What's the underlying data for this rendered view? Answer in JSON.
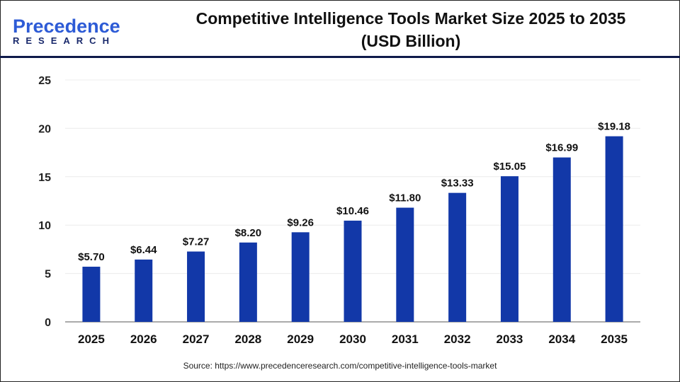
{
  "logo": {
    "line1_a": "P",
    "line1_b": "recedence",
    "line2": "RESEARCH"
  },
  "title_line1": "Competitive Intelligence Tools Market Size 2025 to 2035",
  "title_line2": "(USD Billion)",
  "source": "Source: https://www.precedenceresearch.com/competitive-intelligence-tools-market",
  "colors": {
    "bar": "#1238a8",
    "header_line": "#0e1a4a"
  },
  "chart_data": {
    "type": "bar",
    "title": "Competitive Intelligence Tools Market Size 2025 to 2035 (USD Billion)",
    "xlabel": "",
    "ylabel": "",
    "categories": [
      "2025",
      "2026",
      "2027",
      "2028",
      "2029",
      "2030",
      "2031",
      "2032",
      "2033",
      "2034",
      "2035"
    ],
    "values": [
      5.7,
      6.44,
      7.27,
      8.2,
      9.26,
      10.46,
      11.8,
      13.33,
      15.05,
      16.99,
      19.18
    ],
    "labels": [
      "$5.70",
      "$6.44",
      "$7.27",
      "$8.20",
      "$9.26",
      "$10.46",
      "$11.80",
      "$13.33",
      "$15.05",
      "$16.99",
      "$19.18"
    ],
    "ylim": [
      0,
      25
    ],
    "yticks": [
      0,
      5,
      10,
      15,
      20,
      25
    ],
    "grid": true,
    "legend": "none"
  }
}
